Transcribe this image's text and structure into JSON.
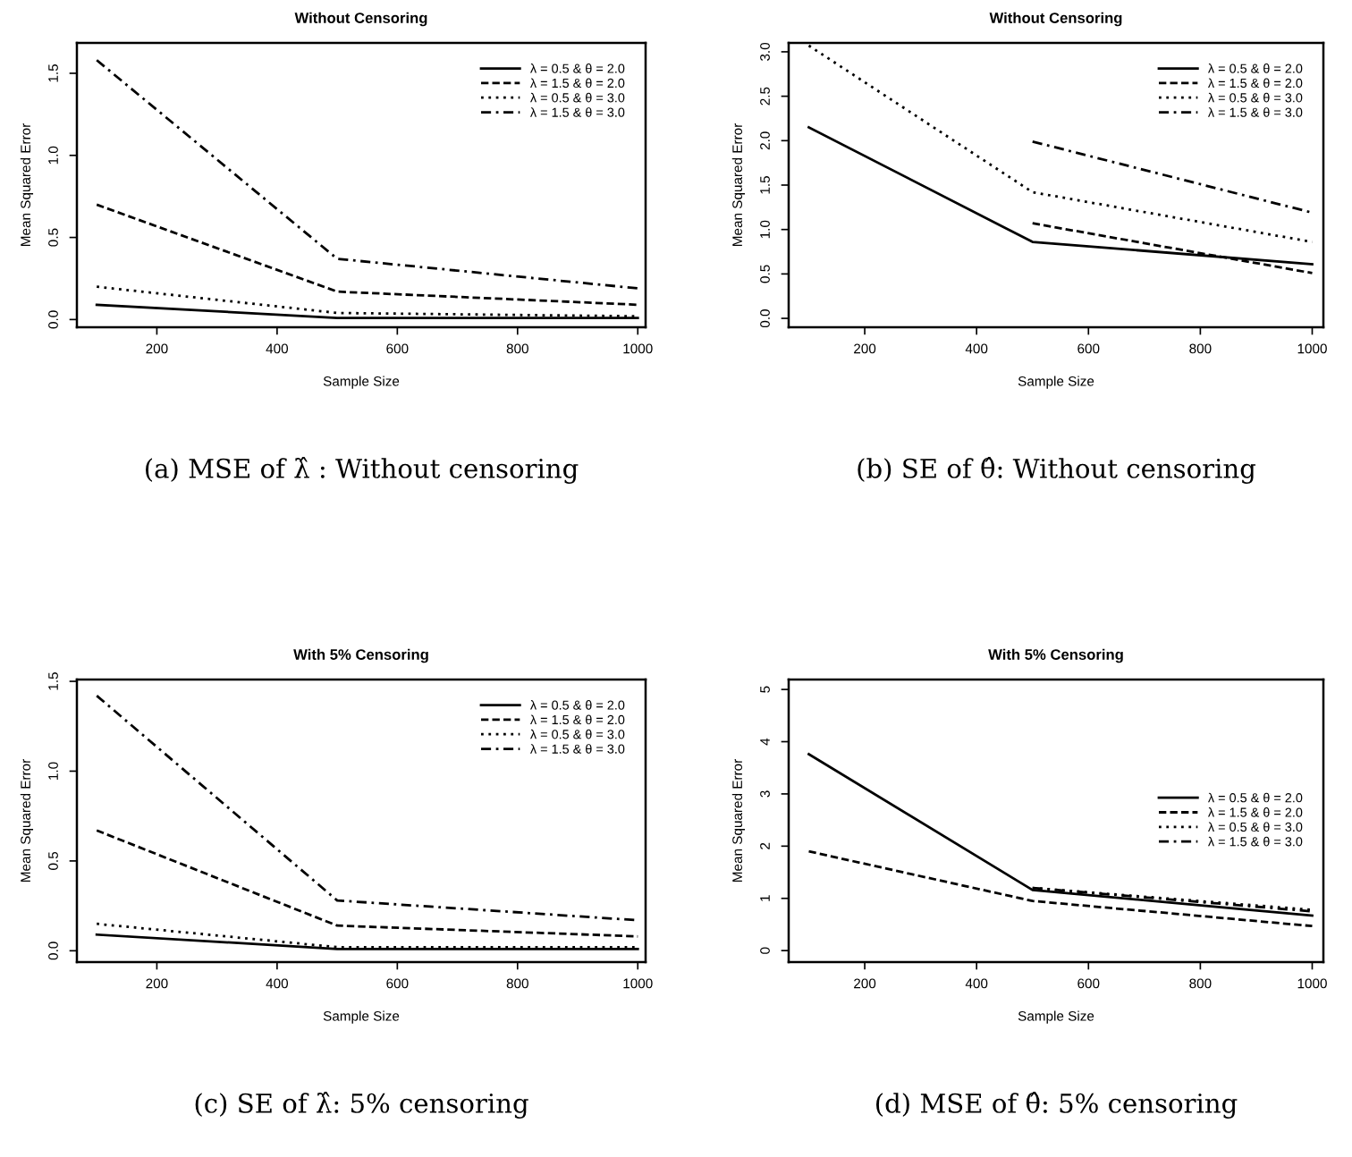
{
  "chart_data": [
    {
      "type": "line",
      "title": "Without Censoring",
      "xlabel": "Sample Size",
      "ylabel": "Mean Squared Error",
      "annotations": [
        "(a) MSE of λ̂ : Without censoring"
      ],
      "x": [
        100,
        500,
        1000
      ],
      "xlim": [
        67,
        1013
      ],
      "xticks": [
        200,
        400,
        600,
        800,
        1000
      ],
      "ylim": [
        -0.047,
        1.685
      ],
      "yticks": [
        {
          "value": 0,
          "label": "0.0"
        },
        {
          "value": 0.5,
          "label": "0.5"
        },
        {
          "value": 1.0,
          "label": "1.0"
        },
        {
          "value": 1.5,
          "label": "1.5"
        }
      ],
      "grid": false,
      "legend": "top right",
      "marker": "none",
      "series": [
        {
          "name": "λ = 0.5 & θ = 2.0",
          "color": "#000000",
          "line_style": "solid",
          "values": [
            0.09,
            0.01,
            0.01
          ]
        },
        {
          "name": "λ = 1.5 & θ = 2.0",
          "color": "#000000",
          "line_style": "dashed",
          "values": [
            0.7,
            0.17,
            0.09
          ]
        },
        {
          "name": "λ = 0.5 & θ = 3.0",
          "color": "#000000",
          "line_style": "dotted",
          "values": [
            0.2,
            0.04,
            0.02
          ]
        },
        {
          "name": "λ = 1.5 & θ = 3.0",
          "color": "#000000",
          "line_style": "dashdot",
          "values": [
            1.58,
            0.37,
            0.19
          ]
        }
      ]
    },
    {
      "type": "line",
      "title": "Without Censoring",
      "xlabel": "Sample Size",
      "ylabel": "Mean Squared Error",
      "annotations": [
        "(b) SE of θ̂: Without censoring"
      ],
      "x": [
        100,
        500,
        1000
      ],
      "xlim": [
        64,
        1020
      ],
      "xticks": [
        200,
        400,
        600,
        800,
        1000
      ],
      "ylim": [
        -0.1,
        3.1
      ],
      "yticks": [
        {
          "value": 0,
          "label": "0.0"
        },
        {
          "value": 0.5,
          "label": "0.5"
        },
        {
          "value": 1.0,
          "label": "1.0"
        },
        {
          "value": 1.5,
          "label": "1.5"
        },
        {
          "value": 2.0,
          "label": "2.0"
        },
        {
          "value": 2.5,
          "label": "2.5"
        },
        {
          "value": 3.0,
          "label": "3.0"
        }
      ],
      "grid": false,
      "legend": "top right",
      "marker": "none",
      "series": [
        {
          "name": "λ = 0.5 & θ = 2.0",
          "color": "#000000",
          "line_style": "solid",
          "values": [
            2.15,
            0.86,
            0.61
          ]
        },
        {
          "name": "λ = 1.5 & θ = 2.0",
          "color": "#000000",
          "line_style": "dashed",
          "values": [
            null,
            1.07,
            0.51
          ]
        },
        {
          "name": "λ = 0.5 & θ = 3.0",
          "color": "#000000",
          "line_style": "dotted",
          "values": [
            3.07,
            1.42,
            0.86
          ]
        },
        {
          "name": "λ = 1.5 & θ = 3.0",
          "color": "#000000",
          "line_style": "dashdot",
          "values": [
            null,
            1.99,
            1.19
          ]
        }
      ]
    },
    {
      "type": "line",
      "title": "With 5% Censoring",
      "xlabel": "Sample Size",
      "ylabel": "Mean Squared Error",
      "annotations": [
        "(c) SE of λ̂: 5% censoring"
      ],
      "x": [
        100,
        500,
        1000
      ],
      "xlim": [
        67,
        1013
      ],
      "xticks": [
        200,
        400,
        600,
        800,
        1000
      ],
      "ylim": [
        -0.063,
        1.51
      ],
      "yticks": [
        {
          "value": 0,
          "label": "0.0"
        },
        {
          "value": 0.5,
          "label": "0.5"
        },
        {
          "value": 1.0,
          "label": "1.0"
        },
        {
          "value": 1.5,
          "label": "1.5"
        }
      ],
      "grid": false,
      "legend": "top right",
      "marker": "none",
      "series": [
        {
          "name": "λ = 0.5 & θ = 2.0",
          "color": "#000000",
          "line_style": "solid",
          "values": [
            0.09,
            0.01,
            0.01
          ]
        },
        {
          "name": "λ = 1.5 & θ = 2.0",
          "color": "#000000",
          "line_style": "dashed",
          "values": [
            0.67,
            0.14,
            0.08
          ]
        },
        {
          "name": "λ = 0.5 & θ = 3.0",
          "color": "#000000",
          "line_style": "dotted",
          "values": [
            0.15,
            0.02,
            0.02
          ]
        },
        {
          "name": "λ = 1.5 & θ = 3.0",
          "color": "#000000",
          "line_style": "dashdot",
          "values": [
            1.42,
            0.28,
            0.17
          ]
        }
      ]
    },
    {
      "type": "line",
      "title": "With 5% Censoring",
      "xlabel": "Sample Size",
      "ylabel": "Mean Squared Error",
      "annotations": [
        "(d) MSE of θ̂: 5% censoring"
      ],
      "x": [
        100,
        500,
        1000
      ],
      "xlim": [
        64,
        1020
      ],
      "xticks": [
        200,
        400,
        600,
        800,
        1000
      ],
      "ylim": [
        -0.22,
        5.19
      ],
      "yticks": [
        0,
        1,
        2,
        3,
        4,
        5
      ],
      "grid": false,
      "legend": "right",
      "marker": "none",
      "series": [
        {
          "name": "λ = 0.5 & θ = 2.0",
          "color": "#000000",
          "line_style": "solid",
          "values": [
            3.76,
            1.16,
            0.67
          ]
        },
        {
          "name": "λ = 1.5 & θ = 2.0",
          "color": "#000000",
          "line_style": "dashed",
          "values": [
            1.9,
            0.95,
            0.47
          ]
        },
        {
          "name": "λ = 0.5 & θ = 3.0",
          "color": "#000000",
          "line_style": "dotted",
          "values": [
            null,
            1.2,
            0.78
          ]
        },
        {
          "name": "λ = 1.5 & θ = 3.0",
          "color": "#000000",
          "line_style": "dashdot",
          "values": [
            null,
            1.2,
            0.75
          ]
        }
      ]
    }
  ]
}
